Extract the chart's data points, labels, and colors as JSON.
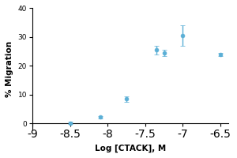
{
  "x": [
    -8.5,
    -8.1,
    -7.75,
    -7.35,
    -7.25,
    -7.0,
    -6.5
  ],
  "y": [
    0.2,
    2.2,
    8.5,
    25.5,
    24.5,
    30.5,
    24.0
  ],
  "yerr": [
    0.4,
    0.4,
    1.0,
    1.5,
    1.0,
    3.5,
    0.5
  ],
  "line_color": "#5bafd6",
  "marker": "o",
  "marker_size": 3.5,
  "line_width": 1.4,
  "xlabel": "Log [CTACK], M",
  "ylabel": "% Migration",
  "xlim": [
    -9.0,
    -6.4
  ],
  "ylim": [
    -2,
    40
  ],
  "xticks": [
    -9.0,
    -8.5,
    -8.0,
    -7.5,
    -7.0,
    -6.5
  ],
  "yticks": [
    0,
    10,
    20,
    30,
    40
  ],
  "xlabel_fontsize": 7.5,
  "ylabel_fontsize": 7.5,
  "tick_fontsize": 6.5,
  "background_color": "#ffffff"
}
